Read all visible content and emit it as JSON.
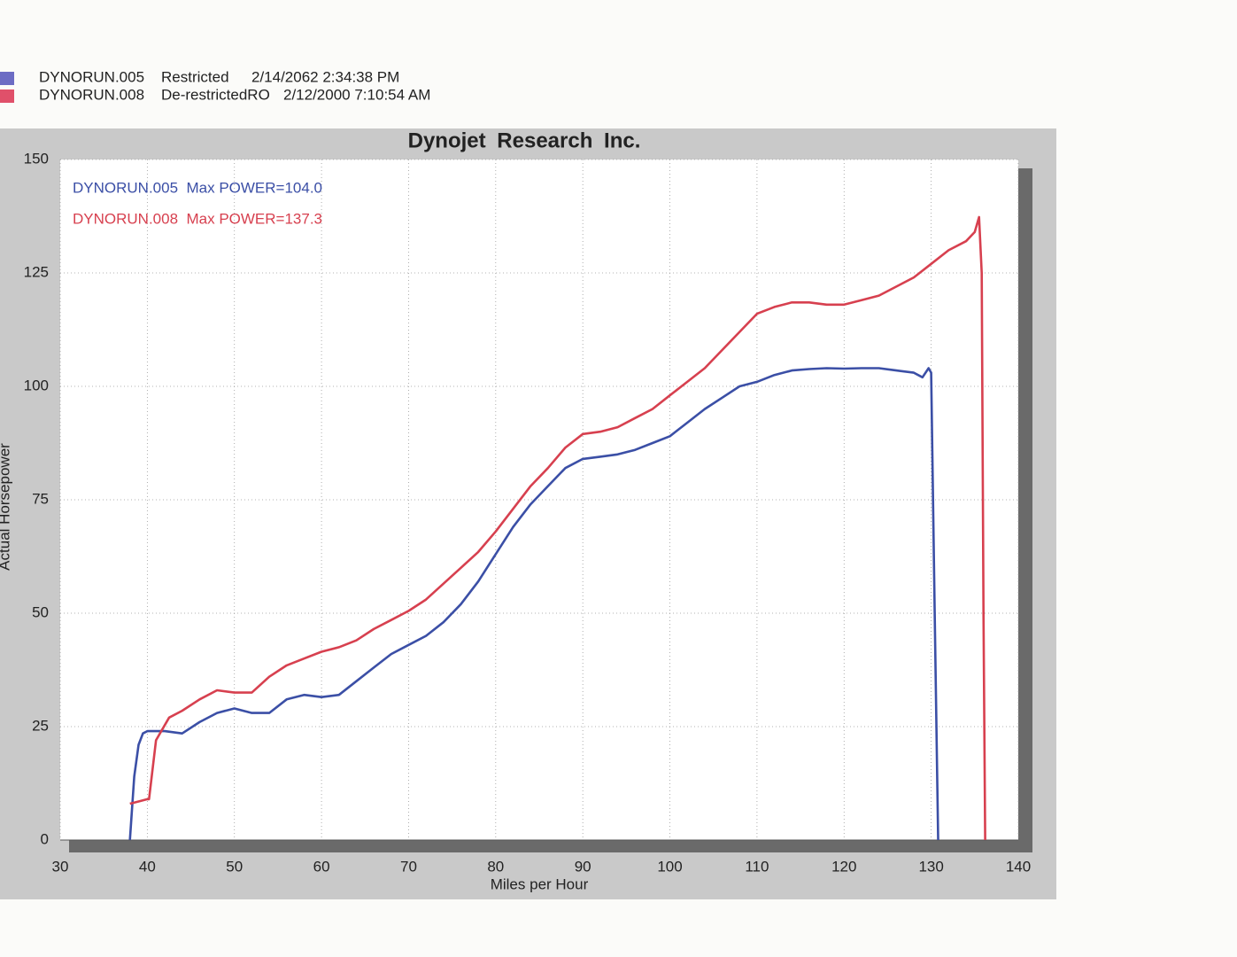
{
  "chart_data": {
    "type": "line",
    "title": "Dynojet Research Inc.",
    "xlabel": "Miles per Hour",
    "ylabel": "Actual Horsepower",
    "xlim": [
      30,
      140
    ],
    "ylim": [
      0,
      150
    ],
    "xticks": [
      30,
      40,
      50,
      60,
      70,
      80,
      90,
      100,
      110,
      120,
      130,
      140
    ],
    "yticks": [
      0,
      25,
      50,
      75,
      100,
      125,
      150
    ],
    "grid": true,
    "series": [
      {
        "name": "DYNORUN.005",
        "run": "Restricted",
        "date": "2/14/2062 2:34:38 PM",
        "legend_color": "#6c6cc4",
        "color": "#3b4fa6",
        "annotation": "DYNORUN.005  Max POWER=104.0",
        "x": [
          38,
          38.5,
          39,
          39.5,
          40,
          42,
          44,
          46,
          48,
          50,
          52,
          54,
          56,
          58,
          60,
          62,
          64,
          66,
          68,
          70,
          72,
          74,
          76,
          78,
          80,
          82,
          84,
          86,
          88,
          90,
          92,
          94,
          96,
          98,
          100,
          102,
          104,
          106,
          108,
          110,
          112,
          114,
          116,
          118,
          120,
          122,
          124,
          126,
          128,
          129,
          129.7,
          130,
          130.4,
          130.8
        ],
        "values": [
          0,
          14,
          21,
          23.5,
          24,
          24,
          23.5,
          26,
          28,
          29,
          28,
          28,
          31,
          32,
          31.5,
          32,
          35,
          38,
          41,
          43,
          45,
          48,
          52,
          57,
          63,
          69,
          74,
          78,
          82,
          84,
          84.5,
          85,
          86,
          87.5,
          89,
          92,
          95,
          97.5,
          100,
          101,
          102.5,
          103.5,
          103.8,
          104,
          103.9,
          104,
          104,
          103.5,
          103,
          102,
          104,
          103,
          50,
          0
        ]
      },
      {
        "name": "DYNORUN.008",
        "run": "De-restrictedRO",
        "date": "2/12/2000 7:10:54 AM",
        "legend_color": "#e0506a",
        "color": "#d7404f",
        "annotation": "DYNORUN.008  Max POWER=137.3",
        "x": [
          38,
          39,
          40,
          40.2,
          41,
          42.5,
          44,
          46,
          48,
          50,
          52,
          54,
          56,
          58,
          60,
          62,
          64,
          66,
          68,
          70,
          72,
          74,
          76,
          78,
          80,
          82,
          84,
          86,
          88,
          90,
          92,
          94,
          96,
          98,
          100,
          102,
          104,
          106,
          108,
          110,
          112,
          114,
          116,
          118,
          120,
          122,
          124,
          126,
          128,
          130,
          132,
          134,
          135,
          135.5,
          135.8,
          136,
          136.2
        ],
        "values": [
          8,
          8.5,
          9,
          9,
          22,
          27,
          28.5,
          31,
          33,
          32.5,
          32.5,
          36,
          38.5,
          40,
          41.5,
          42.5,
          44,
          46.5,
          48.5,
          50.5,
          53,
          56.5,
          60,
          63.5,
          68,
          73,
          78,
          82,
          86.5,
          89.5,
          90,
          91,
          93,
          95,
          98,
          101,
          104,
          108,
          112,
          116,
          117.5,
          118.5,
          118.5,
          118,
          118,
          119,
          120,
          122,
          124,
          127,
          130,
          132,
          134,
          137.3,
          125,
          50,
          0
        ]
      }
    ]
  }
}
